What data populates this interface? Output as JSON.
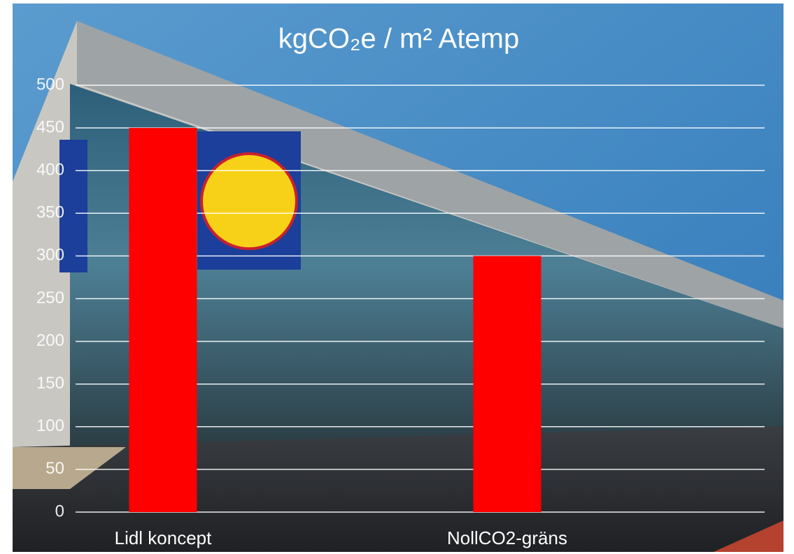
{
  "chart_data": {
    "type": "bar",
    "title": "kgCO₂e / m² Atemp",
    "categories": [
      "Lidl koncept",
      "NollCO2-gräns"
    ],
    "values": [
      450,
      300
    ],
    "color": "#ff0000",
    "ylim": [
      0,
      500
    ],
    "yticks": [
      0,
      50,
      100,
      150,
      200,
      250,
      300,
      350,
      400,
      450,
      500
    ],
    "grid": true
  }
}
